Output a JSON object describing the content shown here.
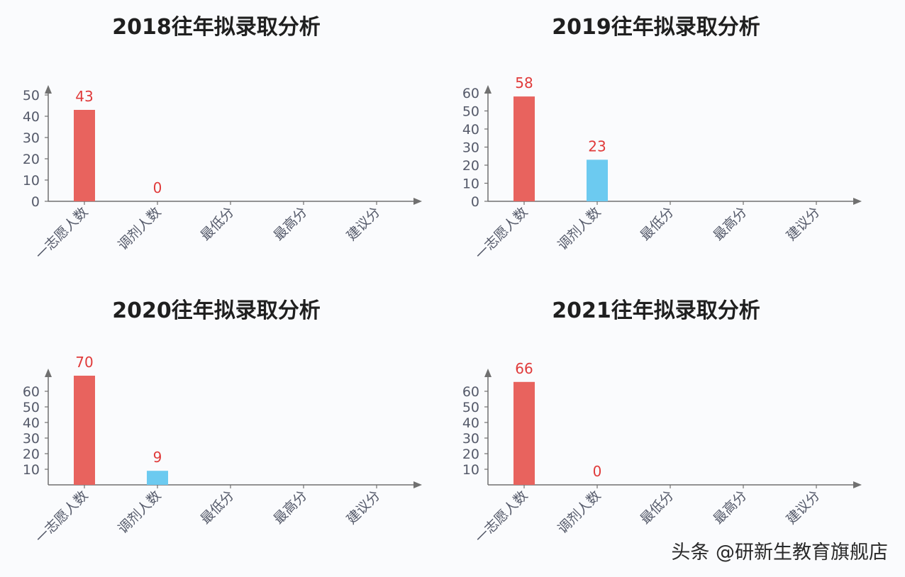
{
  "colors": {
    "primary": "#e8635e",
    "secondary": "#6ccaf0",
    "label": "#e03a3a",
    "axis": "#707070"
  },
  "watermark": "头条 @研新生教育旗舰店",
  "chart_data": [
    {
      "type": "bar",
      "title": "2018往年拟录取分析",
      "categories": [
        "一志愿人数",
        "调剂人数",
        "最低分",
        "最高分",
        "建议分"
      ],
      "values": [
        43,
        0,
        null,
        null,
        null
      ],
      "data_labels": [
        "43",
        "0",
        null,
        null,
        null
      ],
      "yticks": [
        0,
        10,
        20,
        30,
        40,
        50
      ],
      "ylim": [
        0,
        55
      ]
    },
    {
      "type": "bar",
      "title": "2019往年拟录取分析",
      "categories": [
        "一志愿人数",
        "调剂人数",
        "最低分",
        "最高分",
        "建议分"
      ],
      "values": [
        58,
        23,
        null,
        null,
        null
      ],
      "data_labels": [
        "58",
        "23",
        null,
        null,
        null
      ],
      "yticks": [
        0,
        10,
        20,
        30,
        40,
        50,
        60
      ],
      "ylim": [
        0,
        66
      ]
    },
    {
      "type": "bar",
      "title": "2020往年拟录取分析",
      "categories": [
        "一志愿人数",
        "调剂人数",
        "最低分",
        "最高分",
        "建议分"
      ],
      "values": [
        70,
        9,
        null,
        null,
        null
      ],
      "data_labels": [
        "70",
        "9",
        null,
        null,
        null
      ],
      "yticks": [
        10,
        20,
        30,
        40,
        50,
        60
      ],
      "ylim": [
        0,
        74
      ]
    },
    {
      "type": "bar",
      "title": "2021往年拟录取分析",
      "categories": [
        "一志愿人数",
        "调剂人数",
        "最低分",
        "最高分",
        "建议分"
      ],
      "values": [
        66,
        0,
        null,
        null,
        null
      ],
      "data_labels": [
        "66",
        "0",
        null,
        null,
        null
      ],
      "yticks": [
        10,
        20,
        30,
        40,
        50,
        60
      ],
      "ylim": [
        0,
        74
      ]
    }
  ]
}
